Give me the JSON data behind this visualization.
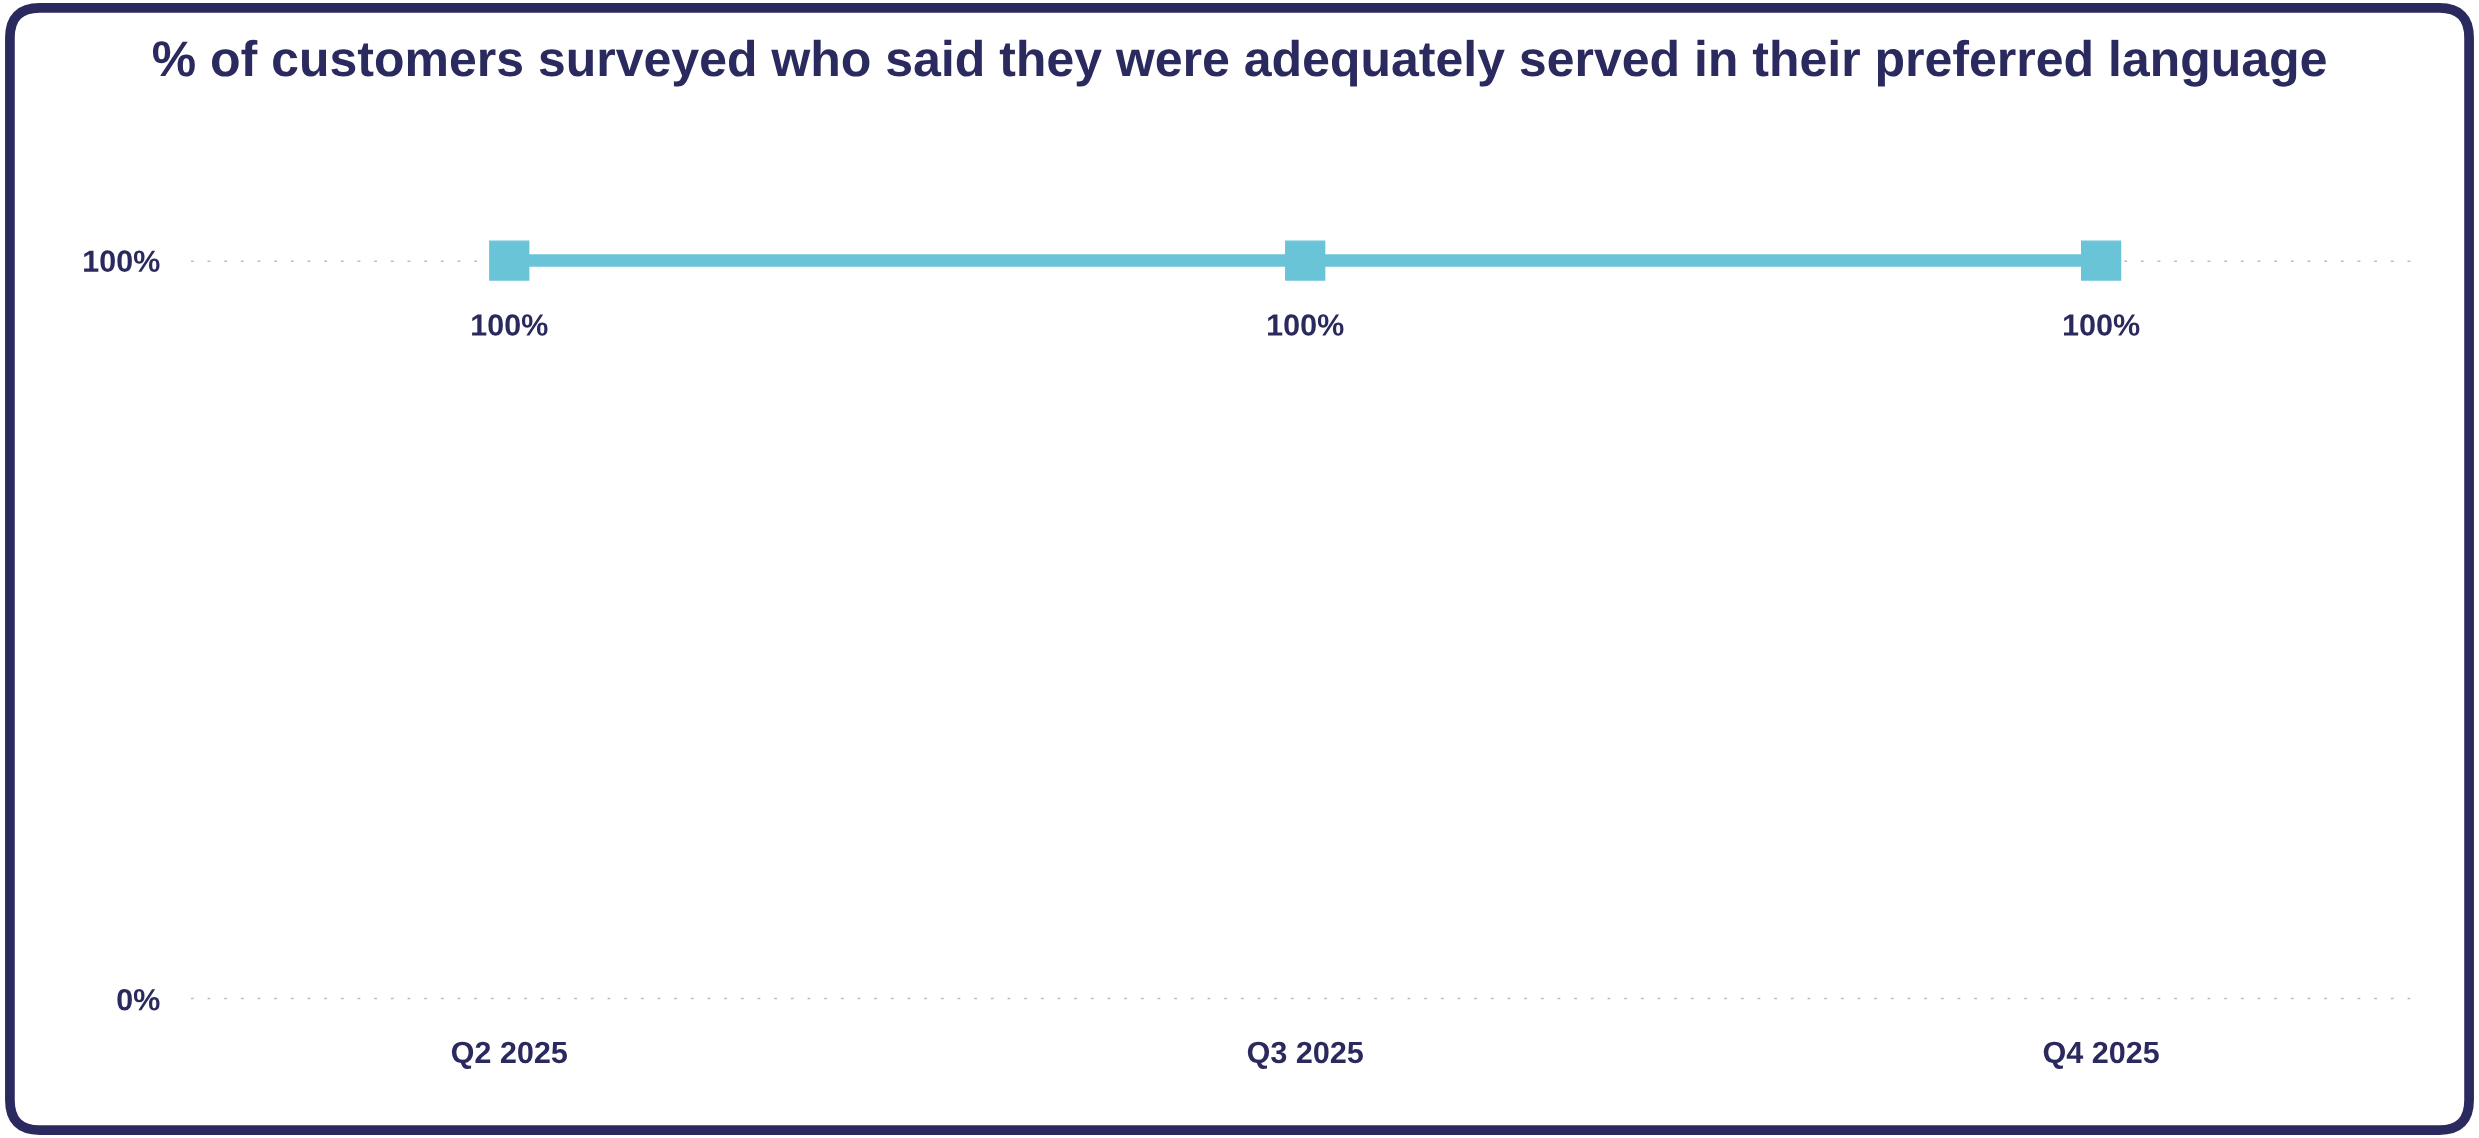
{
  "chart_data": {
    "type": "line",
    "title": "% of customers surveyed who said they were adequately served in their preferred language",
    "categories": [
      "Q2 2025",
      "Q3 2025",
      "Q4 2025"
    ],
    "series": [
      {
        "color": "#6ac4d8",
        "values": [
          100,
          100,
          100
        ],
        "value_labels": [
          "100%",
          "100%",
          "100%"
        ]
      }
    ],
    "ylim": [
      0,
      100
    ],
    "yticks": [
      {
        "value": 0,
        "label": "0%"
      },
      {
        "value": 100,
        "label": "100%"
      }
    ],
    "grid": "y",
    "legend": false,
    "marker": "square",
    "line_style": "solid"
  }
}
